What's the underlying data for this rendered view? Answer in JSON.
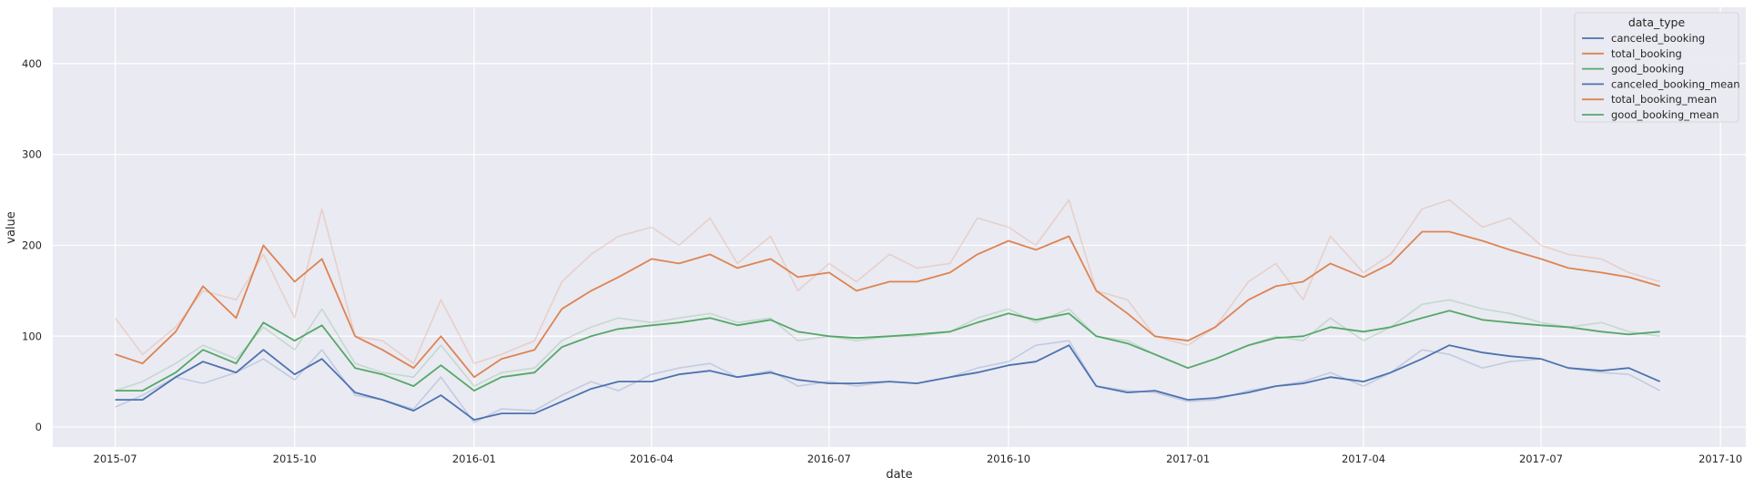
{
  "chart_data": {
    "type": "line",
    "xlabel": "date",
    "ylabel": "value",
    "ylim": [
      -22,
      462
    ],
    "xlim": [
      "2015-05-30",
      "2017-10-14"
    ],
    "x_ticks": [
      "2015-07",
      "2015-10",
      "2016-01",
      "2016-04",
      "2016-07",
      "2016-10",
      "2017-01",
      "2017-04",
      "2017-07",
      "2017-10"
    ],
    "x_tick_dates": [
      "2015-07-01",
      "2015-10-01",
      "2016-01-01",
      "2016-04-01",
      "2016-07-01",
      "2016-10-01",
      "2017-01-01",
      "2017-04-01",
      "2017-07-01",
      "2017-10-01"
    ],
    "y_ticks": [
      0,
      100,
      200,
      300,
      400
    ],
    "grid": true,
    "legend": {
      "title": "data_type",
      "placement": "top-right"
    },
    "dates": [
      "2015-07-01",
      "2015-07-15",
      "2015-08-01",
      "2015-08-15",
      "2015-09-01",
      "2015-09-15",
      "2015-10-01",
      "2015-10-15",
      "2015-11-01",
      "2015-11-15",
      "2015-12-01",
      "2015-12-15",
      "2016-01-01",
      "2016-01-15",
      "2016-02-01",
      "2016-02-15",
      "2016-03-01",
      "2016-03-15",
      "2016-04-01",
      "2016-04-15",
      "2016-05-01",
      "2016-05-15",
      "2016-06-01",
      "2016-06-15",
      "2016-07-01",
      "2016-07-15",
      "2016-08-01",
      "2016-08-15",
      "2016-09-01",
      "2016-09-15",
      "2016-10-01",
      "2016-10-15",
      "2016-11-01",
      "2016-11-15",
      "2016-12-01",
      "2016-12-15",
      "2017-01-01",
      "2017-01-15",
      "2017-02-01",
      "2017-02-15",
      "2017-03-01",
      "2017-03-15",
      "2017-04-01",
      "2017-04-15",
      "2017-05-01",
      "2017-05-15",
      "2017-06-01",
      "2017-06-15",
      "2017-07-01",
      "2017-07-15",
      "2017-08-01",
      "2017-08-15",
      "2017-08-31"
    ],
    "series": [
      {
        "name": "canceled_booking",
        "color": "#4c72b0",
        "opacity": 0.25,
        "values": [
          22,
          35,
          55,
          48,
          60,
          75,
          52,
          85,
          35,
          30,
          20,
          55,
          5,
          20,
          18,
          35,
          50,
          40,
          58,
          65,
          70,
          55,
          62,
          45,
          50,
          45,
          50,
          48,
          55,
          65,
          72,
          90,
          95,
          45,
          40,
          38,
          28,
          30,
          40,
          45,
          50,
          60,
          45,
          60,
          85,
          80,
          65,
          72,
          75,
          65,
          60,
          58,
          40
        ]
      },
      {
        "name": "total_booking",
        "color": "#dd8452",
        "opacity": 0.25,
        "values": [
          120,
          80,
          110,
          150,
          140,
          190,
          120,
          240,
          100,
          95,
          70,
          140,
          70,
          80,
          95,
          160,
          190,
          210,
          220,
          200,
          230,
          180,
          210,
          150,
          180,
          160,
          190,
          175,
          180,
          230,
          220,
          200,
          250,
          150,
          140,
          100,
          90,
          110,
          160,
          180,
          140,
          210,
          170,
          190,
          240,
          250,
          220,
          230,
          200,
          190,
          185,
          170,
          160
        ]
      },
      {
        "name": "good_booking",
        "color": "#55a868",
        "opacity": 0.25,
        "values": [
          40,
          50,
          70,
          90,
          75,
          110,
          85,
          130,
          70,
          60,
          55,
          90,
          45,
          60,
          65,
          95,
          110,
          120,
          115,
          120,
          125,
          115,
          120,
          95,
          100,
          95,
          100,
          100,
          105,
          120,
          130,
          115,
          130,
          100,
          95,
          80,
          65,
          75,
          90,
          100,
          95,
          120,
          95,
          110,
          135,
          140,
          130,
          125,
          115,
          110,
          115,
          105,
          100
        ]
      },
      {
        "name": "canceled_booking_mean",
        "color": "#4c72b0",
        "opacity": 1,
        "values": [
          30,
          30,
          55,
          72,
          60,
          85,
          58,
          75,
          38,
          30,
          18,
          35,
          8,
          15,
          15,
          28,
          42,
          50,
          50,
          58,
          62,
          55,
          60,
          52,
          48,
          48,
          50,
          48,
          55,
          60,
          68,
          72,
          90,
          45,
          38,
          40,
          30,
          32,
          38,
          45,
          48,
          55,
          50,
          60,
          75,
          90,
          82,
          78,
          75,
          65,
          62,
          65,
          50
        ]
      },
      {
        "name": "total_booking_mean",
        "color": "#dd8452",
        "opacity": 1,
        "values": [
          80,
          70,
          105,
          155,
          120,
          200,
          160,
          185,
          100,
          85,
          65,
          100,
          55,
          75,
          85,
          130,
          150,
          165,
          185,
          180,
          190,
          175,
          185,
          165,
          170,
          150,
          160,
          160,
          170,
          190,
          205,
          195,
          210,
          150,
          125,
          100,
          95,
          110,
          140,
          155,
          160,
          180,
          165,
          180,
          215,
          215,
          205,
          195,
          185,
          175,
          170,
          165,
          155
        ]
      },
      {
        "name": "good_booking_mean",
        "color": "#55a868",
        "opacity": 1,
        "values": [
          40,
          40,
          60,
          85,
          70,
          115,
          95,
          112,
          65,
          58,
          45,
          68,
          40,
          55,
          60,
          88,
          100,
          108,
          112,
          115,
          120,
          112,
          118,
          105,
          100,
          98,
          100,
          102,
          105,
          115,
          125,
          118,
          125,
          100,
          92,
          80,
          65,
          75,
          90,
          98,
          100,
          110,
          105,
          110,
          120,
          128,
          118,
          115,
          112,
          110,
          105,
          102,
          105
        ]
      }
    ]
  }
}
